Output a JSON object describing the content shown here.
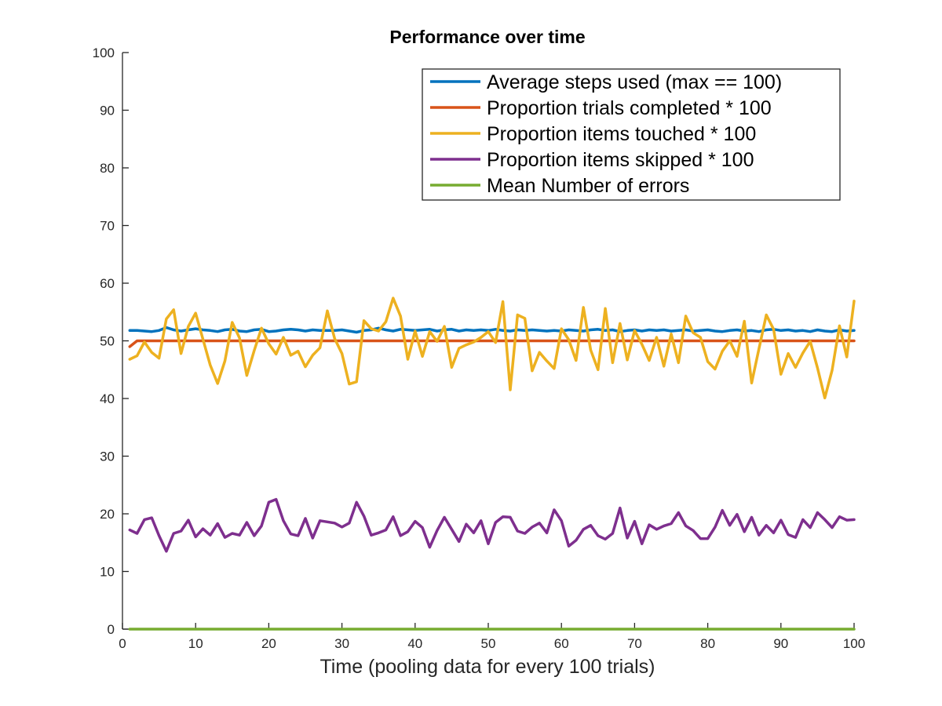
{
  "chart_data": {
    "type": "line",
    "title": "Performance over time",
    "xlabel": "Time (pooling data for every 100 trials)",
    "ylabel": "",
    "xlim": [
      0,
      100
    ],
    "ylim": [
      0,
      100
    ],
    "xticks": [
      0,
      10,
      20,
      30,
      40,
      50,
      60,
      70,
      80,
      90,
      100
    ],
    "yticks": [
      0,
      10,
      20,
      30,
      40,
      50,
      60,
      70,
      80,
      90,
      100
    ],
    "grid": false,
    "legend_position": "top-right",
    "x": [
      1,
      2,
      3,
      4,
      5,
      6,
      7,
      8,
      9,
      10,
      11,
      12,
      13,
      14,
      15,
      16,
      17,
      18,
      19,
      20,
      21,
      22,
      23,
      24,
      25,
      26,
      27,
      28,
      29,
      30,
      31,
      32,
      33,
      34,
      35,
      36,
      37,
      38,
      39,
      40,
      41,
      42,
      43,
      44,
      45,
      46,
      47,
      48,
      49,
      50,
      51,
      52,
      53,
      54,
      55,
      56,
      57,
      58,
      59,
      60,
      61,
      62,
      63,
      64,
      65,
      66,
      67,
      68,
      69,
      70,
      71,
      72,
      73,
      74,
      75,
      76,
      77,
      78,
      79,
      80,
      81,
      82,
      83,
      84,
      85,
      86,
      87,
      88,
      89,
      90,
      91,
      92,
      93,
      94,
      95,
      96,
      97,
      98,
      99,
      100
    ],
    "series": [
      {
        "name": "Average steps used (max == 100)",
        "color": "#0072BD",
        "values": [
          51.8,
          51.8,
          51.7,
          51.6,
          51.8,
          52.3,
          51.9,
          51.7,
          51.9,
          52.1,
          51.9,
          51.8,
          51.6,
          51.9,
          52.0,
          51.7,
          51.6,
          51.9,
          52.0,
          51.6,
          51.7,
          51.9,
          52.0,
          51.9,
          51.7,
          51.9,
          51.8,
          51.8,
          51.8,
          51.9,
          51.7,
          51.5,
          51.8,
          51.9,
          52.2,
          51.9,
          51.7,
          52.0,
          51.9,
          51.8,
          51.9,
          52.0,
          51.7,
          51.9,
          52.0,
          51.7,
          51.9,
          51.8,
          51.9,
          51.8,
          52.0,
          51.8,
          51.7,
          51.9,
          51.8,
          51.9,
          51.8,
          51.7,
          51.8,
          51.7,
          51.9,
          51.8,
          51.7,
          51.9,
          52.0,
          51.8,
          51.9,
          51.6,
          51.8,
          51.9,
          51.7,
          51.9,
          51.8,
          51.9,
          51.7,
          51.8,
          51.9,
          51.7,
          51.8,
          51.9,
          51.7,
          51.6,
          51.8,
          51.9,
          51.7,
          51.8,
          51.6,
          51.9,
          52.0,
          51.8,
          51.9,
          51.7,
          51.8,
          51.6,
          51.9,
          51.7,
          51.6,
          51.9,
          51.7,
          51.8
        ]
      },
      {
        "name": "Proportion trials completed * 100",
        "color": "#D95319",
        "values": [
          49,
          50,
          50,
          50,
          50,
          50,
          50,
          50,
          50,
          50,
          50,
          50,
          50,
          50,
          50,
          50,
          50,
          50,
          50,
          50,
          50,
          50,
          50,
          50,
          50,
          50,
          50,
          50,
          50,
          50,
          50,
          50,
          50,
          50,
          50,
          50,
          50,
          50,
          50,
          50,
          50,
          50,
          50,
          50,
          50,
          50,
          50,
          50,
          50,
          50,
          50,
          50,
          50,
          50,
          50,
          50,
          50,
          50,
          50,
          50,
          50,
          50,
          50,
          50,
          50,
          50,
          50,
          50,
          50,
          50,
          50,
          50,
          50,
          50,
          50,
          50,
          50,
          50,
          50,
          50,
          50,
          50,
          50,
          50,
          50,
          50,
          50,
          50,
          50,
          50,
          50,
          50,
          50,
          50,
          50,
          50,
          50,
          50,
          50,
          50
        ]
      },
      {
        "name": "Proportion items touched * 100",
        "color": "#EDB120",
        "values": [
          46.8,
          47.4,
          49.8,
          48.0,
          47.0,
          53.8,
          55.4,
          47.8,
          52.5,
          54.8,
          50.3,
          45.8,
          42.6,
          46.5,
          53.2,
          50.5,
          44.0,
          48.3,
          52.2,
          49.5,
          47.7,
          50.6,
          47.5,
          48.2,
          45.5,
          47.5,
          48.8,
          55.2,
          50.4,
          47.8,
          42.5,
          42.9,
          53.5,
          52.1,
          51.7,
          53.3,
          57.4,
          54.3,
          46.8,
          51.7,
          47.3,
          51.6,
          49.9,
          52.5,
          45.4,
          48.7,
          49.3,
          49.8,
          50.6,
          51.6,
          49.7,
          56.8,
          41.5,
          54.5,
          53.9,
          44.8,
          48.0,
          46.5,
          45.2,
          52.1,
          50.2,
          46.6,
          55.8,
          48.4,
          45.0,
          55.6,
          46.2,
          53.0,
          46.7,
          51.8,
          49.4,
          46.6,
          50.6,
          45.6,
          51.2,
          46.2,
          54.3,
          51.4,
          50.6,
          46.4,
          45.1,
          48.2,
          50.0,
          47.3,
          53.4,
          42.7,
          48.6,
          54.5,
          52.0,
          44.2,
          47.8,
          45.4,
          47.9,
          49.9,
          45.3,
          40.1,
          44.9,
          52.6,
          47.2,
          56.9
        ]
      },
      {
        "name": "Proportion items skipped * 100",
        "color": "#7E2F8E",
        "values": [
          17.2,
          16.6,
          19.0,
          19.3,
          16.2,
          13.5,
          16.6,
          17.0,
          18.9,
          16.0,
          17.4,
          16.3,
          18.3,
          15.9,
          16.6,
          16.3,
          18.5,
          16.2,
          17.9,
          22.0,
          22.5,
          18.8,
          16.5,
          16.2,
          19.2,
          15.8,
          18.8,
          18.6,
          18.4,
          17.7,
          18.4,
          22.0,
          19.6,
          16.3,
          16.7,
          17.2,
          19.5,
          16.2,
          16.9,
          18.7,
          17.6,
          14.2,
          17.1,
          19.4,
          17.3,
          15.2,
          18.2,
          16.7,
          18.8,
          14.8,
          18.5,
          19.5,
          19.4,
          17.0,
          16.6,
          17.7,
          18.4,
          16.7,
          20.7,
          18.8,
          14.4,
          15.4,
          17.3,
          18.0,
          16.2,
          15.6,
          16.6,
          21.0,
          15.8,
          18.7,
          14.8,
          18.1,
          17.3,
          17.9,
          18.3,
          20.2,
          17.9,
          17.1,
          15.7,
          15.7,
          17.7,
          20.6,
          18.0,
          19.9,
          16.9,
          19.4,
          16.3,
          18.0,
          16.7,
          18.9,
          16.4,
          15.9,
          19.0,
          17.6,
          20.2,
          19.0,
          17.6,
          19.5,
          18.9,
          19.0
        ]
      },
      {
        "name": "Mean Number of errors",
        "color": "#77AC30",
        "values": [
          0,
          0,
          0,
          0,
          0,
          0,
          0,
          0,
          0,
          0,
          0,
          0,
          0,
          0,
          0,
          0,
          0,
          0,
          0,
          0,
          0,
          0,
          0,
          0,
          0,
          0,
          0,
          0,
          0,
          0,
          0,
          0,
          0,
          0,
          0,
          0,
          0,
          0,
          0,
          0,
          0,
          0,
          0,
          0,
          0,
          0,
          0,
          0,
          0,
          0,
          0,
          0,
          0,
          0,
          0,
          0,
          0,
          0,
          0,
          0,
          0,
          0,
          0,
          0,
          0,
          0,
          0,
          0,
          0,
          0,
          0,
          0,
          0,
          0,
          0,
          0,
          0,
          0,
          0,
          0,
          0,
          0,
          0,
          0,
          0,
          0,
          0,
          0,
          0,
          0,
          0,
          0,
          0,
          0,
          0,
          0,
          0,
          0,
          0,
          0
        ]
      }
    ]
  }
}
